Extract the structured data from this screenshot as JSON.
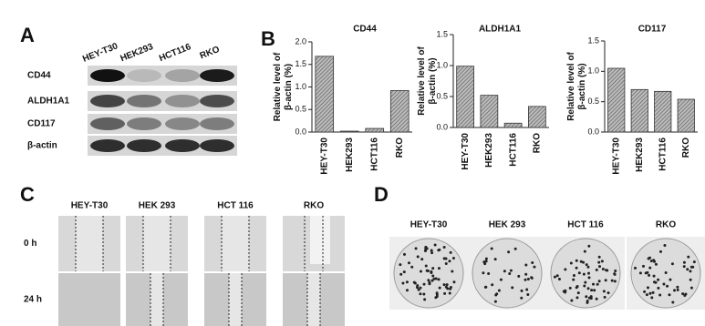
{
  "panel_labels": [
    "A",
    "B",
    "C",
    "D"
  ],
  "blot": {
    "lanes": [
      "HEY-T30",
      "HEK293",
      "HCT116",
      "RKO"
    ],
    "rows": [
      "CD44",
      "ALDH1A1",
      "CD117",
      "β-actin"
    ]
  },
  "chart_data": [
    {
      "type": "bar",
      "title": "CD44",
      "y_label": "Relative level of β-actin (%)",
      "categories": [
        "HEY-T30",
        "HEK293",
        "HCT116",
        "RKO"
      ],
      "values": [
        1.68,
        0.02,
        0.08,
        0.92
      ],
      "color": "#8a8a8a",
      "ylim": [
        0,
        2
      ],
      "yticks": [
        {
          "value": 0,
          "label": "0.0"
        },
        0.5,
        {
          "value": 1,
          "label": "1.0"
        },
        1.5,
        {
          "value": 2,
          "label": "2.0"
        }
      ]
    },
    {
      "type": "bar",
      "title": "ALDH1A1",
      "y_label": "Relative level of β-actin (%)",
      "categories": [
        "HEY-T30",
        "HEK293",
        "HCT116",
        "RKO"
      ],
      "values": [
        0.99,
        0.52,
        0.07,
        0.34
      ],
      "color": "#8a8a8a",
      "ylim": [
        0,
        1.5
      ],
      "yticks": [
        {
          "value": 0,
          "label": "0.0"
        },
        0.5,
        {
          "value": 1,
          "label": "1.0"
        },
        1.5
      ]
    },
    {
      "type": "bar",
      "title": "CD117",
      "y_label": "Relative level of β-actin (%)",
      "categories": [
        "HEY-T30",
        "HEK293",
        "HCT116",
        "RKO"
      ],
      "values": [
        1.05,
        0.7,
        0.67,
        0.54
      ],
      "color": "#8a8a8a",
      "ylim": [
        0,
        1.5
      ],
      "yticks": [
        {
          "value": 0,
          "label": "0.0"
        },
        0.5,
        {
          "value": 1,
          "label": "1.0"
        },
        1.5
      ]
    }
  ],
  "wound": {
    "columns": [
      "HEY-T30",
      "HEK 293",
      "HCT 116",
      "RKO"
    ],
    "rows": [
      "0 h",
      "24 h"
    ]
  },
  "colony": {
    "columns": [
      "HEY-T30",
      "HEK 293",
      "HCT 116",
      "RKO"
    ]
  }
}
